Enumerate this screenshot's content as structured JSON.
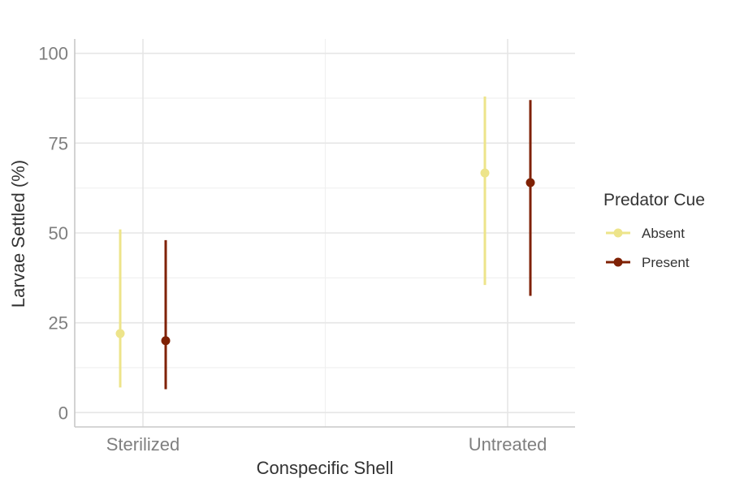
{
  "chart_data": {
    "type": "errorbar",
    "title": "",
    "xlabel": "Conspecific Shell",
    "ylabel": "Larvae Settled (%)",
    "categories": [
      "Sterilized",
      "Untreated"
    ],
    "ylim": [
      -4,
      104
    ],
    "yticks": [
      0,
      25,
      50,
      75,
      100
    ],
    "grid": true,
    "legend": {
      "title": "Predator Cue",
      "position": "right"
    },
    "series": [
      {
        "name": "Absent",
        "color": "#ede48a",
        "points": [
          {
            "category": "Sterilized",
            "y": 22,
            "lower": 7,
            "upper": 51
          },
          {
            "category": "Untreated",
            "y": 66.7,
            "lower": 35.5,
            "upper": 88
          }
        ]
      },
      {
        "name": "Present",
        "color": "#7f2104",
        "points": [
          {
            "category": "Sterilized",
            "y": 20,
            "lower": 6.5,
            "upper": 48
          },
          {
            "category": "Untreated",
            "y": 64,
            "lower": 32.5,
            "upper": 87
          }
        ]
      }
    ]
  }
}
